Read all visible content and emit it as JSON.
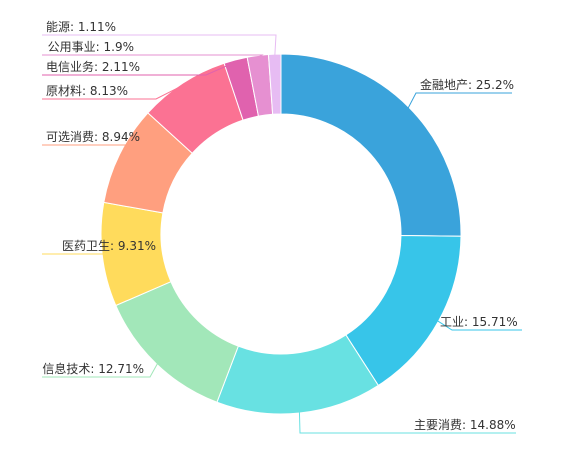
{
  "chart_data": {
    "type": "donut",
    "title": "",
    "unit": "%",
    "slices": [
      {
        "name": "金融地产",
        "value": 25.2,
        "label": "金融地产: 25.2%",
        "color": "#3aa3db"
      },
      {
        "name": "工业",
        "value": 15.71,
        "label": "工业: 15.71%",
        "color": "#37c5e9"
      },
      {
        "name": "主要消费",
        "value": 14.88,
        "label": "主要消费: 14.88%",
        "color": "#68e1e2"
      },
      {
        "name": "信息技术",
        "value": 12.71,
        "label": "信息技术: 12.71%",
        "color": "#a2e7b9"
      },
      {
        "name": "医药卫生",
        "value": 9.31,
        "label": "医药卫生: 9.31%",
        "color": "#ffdb5c"
      },
      {
        "name": "可选消费",
        "value": 8.94,
        "label": "可选消费: 8.94%",
        "color": "#ff9f7f"
      },
      {
        "name": "原材料",
        "value": 8.13,
        "label": "原材料: 8.13%",
        "color": "#fb7293"
      },
      {
        "name": "电信业务",
        "value": 2.11,
        "label": "电信业务: 2.11%",
        "color": "#e062ae"
      },
      {
        "name": "公用事业",
        "value": 1.9,
        "label": "公用事业: 1.9%",
        "color": "#e690d1"
      },
      {
        "name": "能源",
        "value": 1.11,
        "label": "能源: 1.11%",
        "color": "#e7bcf3"
      }
    ]
  }
}
